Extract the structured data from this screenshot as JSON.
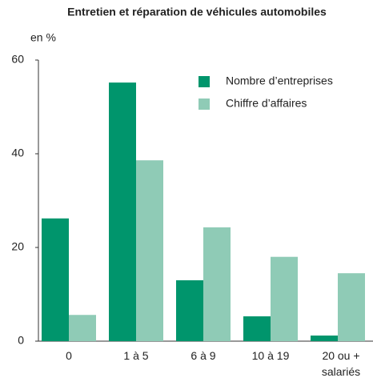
{
  "chart_data": {
    "type": "bar",
    "title": "Entretien et réparation de véhicules automobiles",
    "y_label": "en %",
    "categories": [
      "0",
      "1 à 5",
      "6 à 9",
      "10 à 19",
      "20 ou + salariés"
    ],
    "series": [
      {
        "name": "Nombre d’entreprises",
        "color": "#00956c",
        "values": [
          26.2,
          55.2,
          13,
          5.3,
          1.2
        ]
      },
      {
        "name": "Chiffre d’affaires",
        "color": "#8fcbb6",
        "values": [
          5.6,
          38.6,
          24.3,
          18,
          14.5
        ]
      }
    ],
    "ylim": [
      0,
      60
    ],
    "yticks": [
      0,
      20,
      40,
      60
    ],
    "grid": false,
    "legend": "top-right"
  }
}
